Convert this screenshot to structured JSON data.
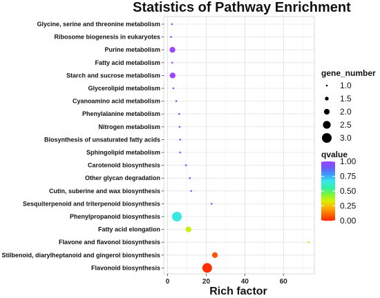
{
  "chart_data": {
    "type": "scatter",
    "title": "Statistics of Pathway Enrichment",
    "xlabel": "Rich factor",
    "ylabel": "",
    "xlim": [
      -2,
      76
    ],
    "xticks": [
      0,
      20,
      40,
      60
    ],
    "grid": true,
    "categories": [
      "Glycine, serine and threonine metabolism",
      "Ribosome biogenesis in eukaryotes",
      "Purine metabolism",
      "Fatty acid metabolism",
      "Starch and sucrose metabolism",
      "Glycerolipid metabolism",
      "Cyanoamino acid metabolism",
      "Phenylalanine metabolism",
      "Nitrogen metabolism",
      "Biosynthesis of unsaturated fatty acids",
      "Sphingolipid metabolism",
      "Carotenoid biosynthesis",
      "Other glycan degradation",
      "Cutin, suberine and wax biosynthesis",
      "Sesquiterpenoid and triterpenoid biosynthesis",
      "Phenylpropanoid biosynthesis",
      "Fatty acid elongation",
      "Flavone and flavonol biosynthesis",
      "Stilbenoid, diarylheptanoid and gingerol biosynthesis",
      "Flavonoid biosynthesis"
    ],
    "points": [
      {
        "category": "Glycine, serine and threonine metabolism",
        "rich_factor": 2.3,
        "gene_number": 1,
        "qvalue": 1.0
      },
      {
        "category": "Ribosome biogenesis in eukaryotes",
        "rich_factor": 1.8,
        "gene_number": 1,
        "qvalue": 1.0
      },
      {
        "category": "Purine metabolism",
        "rich_factor": 2.5,
        "gene_number": 2,
        "qvalue": 1.0
      },
      {
        "category": "Fatty acid metabolism",
        "rich_factor": 2.4,
        "gene_number": 1,
        "qvalue": 1.0
      },
      {
        "category": "Starch and sucrose metabolism",
        "rich_factor": 2.6,
        "gene_number": 2,
        "qvalue": 1.0
      },
      {
        "category": "Glycerolipid metabolism",
        "rich_factor": 3.0,
        "gene_number": 1,
        "qvalue": 1.0
      },
      {
        "category": "Cyanoamino acid metabolism",
        "rich_factor": 4.5,
        "gene_number": 1,
        "qvalue": 1.0
      },
      {
        "category": "Phenylalanine metabolism",
        "rich_factor": 6.0,
        "gene_number": 1,
        "qvalue": 1.0
      },
      {
        "category": "Nitrogen metabolism",
        "rich_factor": 6.2,
        "gene_number": 1,
        "qvalue": 1.0
      },
      {
        "category": "Biosynthesis of unsaturated fatty acids",
        "rich_factor": 6.5,
        "gene_number": 1,
        "qvalue": 1.0
      },
      {
        "category": "Sphingolipid metabolism",
        "rich_factor": 6.5,
        "gene_number": 1,
        "qvalue": 1.0
      },
      {
        "category": "Carotenoid biosynthesis",
        "rich_factor": 9.5,
        "gene_number": 1,
        "qvalue": 1.0
      },
      {
        "category": "Other glycan degradation",
        "rich_factor": 11.5,
        "gene_number": 1,
        "qvalue": 1.0
      },
      {
        "category": "Cutin, suberine and wax biosynthesis",
        "rich_factor": 12.2,
        "gene_number": 1,
        "qvalue": 0.98
      },
      {
        "category": "Sesquiterpenoid and triterpenoid biosynthesis",
        "rich_factor": 22.8,
        "gene_number": 1,
        "qvalue": 0.95
      },
      {
        "category": "Phenylpropanoid biosynthesis",
        "rich_factor": 4.8,
        "gene_number": 3,
        "qvalue": 0.65
      },
      {
        "category": "Fatty acid elongation",
        "rich_factor": 10.8,
        "gene_number": 2,
        "qvalue": 0.35
      },
      {
        "category": "Flavone and flavonol biosynthesis",
        "rich_factor": 73.0,
        "gene_number": 1,
        "qvalue": 0.3
      },
      {
        "category": "Stilbenoid, diarylheptanoid and gingerol biosynthesis",
        "rich_factor": 24.5,
        "gene_number": 2,
        "qvalue": 0.08
      },
      {
        "category": "Flavonoid biosynthesis",
        "rich_factor": 20.5,
        "gene_number": 3,
        "qvalue": 0.02
      }
    ],
    "legend_size": {
      "title": "gene_number",
      "values": [
        1.0,
        1.5,
        2.0,
        2.5,
        3.0
      ],
      "labels": [
        "1.0",
        "1.5",
        "2.0",
        "2.5",
        "3.0"
      ]
    },
    "legend_color": {
      "title": "qvalue",
      "ticks": [
        1.0,
        0.75,
        0.5,
        0.25,
        0.0
      ],
      "labels": [
        "1.00",
        "0.75",
        "0.50",
        "0.25",
        "0.00"
      ],
      "colormap": [
        "#FF2200",
        "#FF6A00",
        "#FFB000",
        "#D8F000",
        "#7CF53A",
        "#2EF0A8",
        "#38E8E8",
        "#3A9CFF",
        "#6A5CFF",
        "#9A44FF"
      ]
    },
    "colors": {
      "grid": "#e6e6e6",
      "panel_border": "#d8d8d8",
      "axis": "#333333"
    }
  }
}
